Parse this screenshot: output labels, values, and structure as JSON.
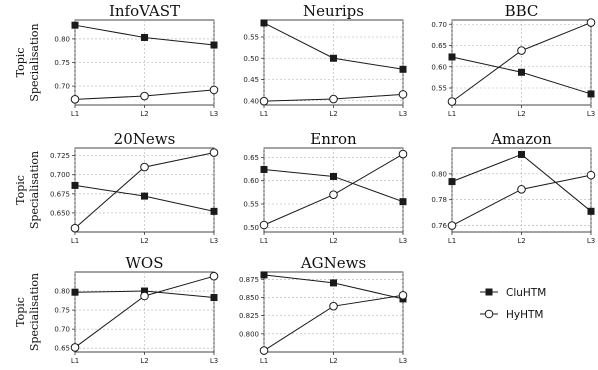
{
  "chart_data": [
    {
      "type": "line",
      "title": "InfoVAST",
      "ylabel": "Topic\nSpecialisation",
      "categories": [
        "L1",
        "L2",
        "L3"
      ],
      "ylim": [
        0.66,
        0.84
      ],
      "yticks": [
        "0.70",
        "0.75",
        "0.80"
      ],
      "grid": true,
      "series": [
        {
          "name": "CluHTM",
          "values": [
            0.829,
            0.803,
            0.787
          ]
        },
        {
          "name": "HyHTM",
          "values": [
            0.672,
            0.679,
            0.692
          ]
        }
      ]
    },
    {
      "type": "line",
      "title": "Neurips",
      "ylabel": "",
      "categories": [
        "L1",
        "L2",
        "L3"
      ],
      "ylim": [
        0.39,
        0.59
      ],
      "yticks": [
        "0.40",
        "0.45",
        "0.50",
        "0.55"
      ],
      "grid": true,
      "series": [
        {
          "name": "CluHTM",
          "values": [
            0.583,
            0.5,
            0.474
          ]
        },
        {
          "name": "HyHTM",
          "values": [
            0.399,
            0.404,
            0.415
          ]
        }
      ]
    },
    {
      "type": "line",
      "title": "BBC",
      "ylabel": "",
      "categories": [
        "L1",
        "L2",
        "L3"
      ],
      "ylim": [
        0.51,
        0.71
      ],
      "yticks": [
        "0.55",
        "0.60",
        "0.65",
        "0.70"
      ],
      "grid": true,
      "series": [
        {
          "name": "CluHTM",
          "values": [
            0.623,
            0.587,
            0.536
          ]
        },
        {
          "name": "HyHTM",
          "values": [
            0.518,
            0.638,
            0.704
          ]
        }
      ]
    },
    {
      "type": "line",
      "title": "20News",
      "ylabel": "Topic\nSpecialisation",
      "categories": [
        "L1",
        "L2",
        "L3"
      ],
      "ylim": [
        0.625,
        0.735
      ],
      "yticks": [
        "0.650",
        "0.675",
        "0.700",
        "0.725"
      ],
      "grid": true,
      "series": [
        {
          "name": "CluHTM",
          "values": [
            0.686,
            0.672,
            0.652
          ]
        },
        {
          "name": "HyHTM",
          "values": [
            0.63,
            0.71,
            0.729
          ]
        }
      ]
    },
    {
      "type": "line",
      "title": "Enron",
      "ylabel": "",
      "categories": [
        "L1",
        "L2",
        "L3"
      ],
      "ylim": [
        0.49,
        0.67
      ],
      "yticks": [
        "0.50",
        "0.55",
        "0.60",
        "0.65"
      ],
      "grid": true,
      "series": [
        {
          "name": "CluHTM",
          "values": [
            0.624,
            0.609,
            0.555
          ]
        },
        {
          "name": "HyHTM",
          "values": [
            0.505,
            0.57,
            0.657
          ]
        }
      ]
    },
    {
      "type": "line",
      "title": "Amazon",
      "ylabel": "",
      "categories": [
        "L1",
        "L2",
        "L3"
      ],
      "ylim": [
        0.755,
        0.82
      ],
      "yticks": [
        "0.76",
        "0.78",
        "0.80"
      ],
      "grid": true,
      "series": [
        {
          "name": "CluHTM",
          "values": [
            0.794,
            0.815,
            0.771
          ]
        },
        {
          "name": "HyHTM",
          "values": [
            0.76,
            0.788,
            0.799
          ]
        }
      ]
    },
    {
      "type": "line",
      "title": "WOS",
      "ylabel": "Topic\nSpecialisation",
      "categories": [
        "L1",
        "L2",
        "L3"
      ],
      "ylim": [
        0.64,
        0.85
      ],
      "yticks": [
        "0.65",
        "0.70",
        "0.75",
        "0.80"
      ],
      "grid": true,
      "series": [
        {
          "name": "CluHTM",
          "values": [
            0.797,
            0.8,
            0.783
          ]
        },
        {
          "name": "HyHTM",
          "values": [
            0.652,
            0.787,
            0.839
          ]
        }
      ]
    },
    {
      "type": "line",
      "title": "AGNews",
      "ylabel": "",
      "categories": [
        "L1",
        "L2",
        "L3"
      ],
      "ylim": [
        0.775,
        0.885
      ],
      "yticks": [
        "0.800",
        "0.825",
        "0.850",
        "0.875"
      ],
      "grid": true,
      "series": [
        {
          "name": "CluHTM",
          "values": [
            0.881,
            0.87,
            0.848
          ]
        },
        {
          "name": "HyHTM",
          "values": [
            0.777,
            0.838,
            0.853
          ]
        }
      ]
    }
  ],
  "legend": {
    "placement": "bottom-right",
    "items": [
      {
        "label": "CluHTM",
        "marker": "filled-square"
      },
      {
        "label": "HyHTM",
        "marker": "open-circle"
      }
    ]
  },
  "colors": {
    "line": "#1a1a1a",
    "grid": "#b0b0b0",
    "axes": "#333333",
    "marker_open_fill": "#ffffff"
  }
}
